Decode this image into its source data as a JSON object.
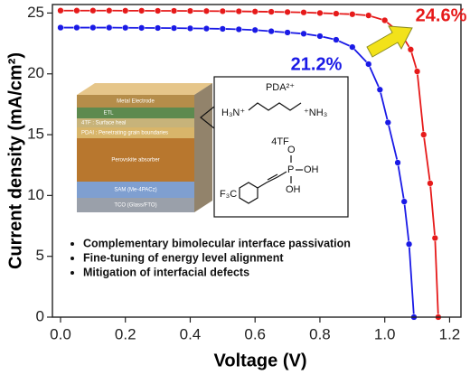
{
  "chart_data": {
    "type": "line",
    "x_label": "Voltage (V)",
    "y_label": "Current density (mA/cm²)",
    "xlim": [
      -0.025,
      1.235
    ],
    "ylim": [
      0,
      25.7
    ],
    "xticks": [
      {
        "value": 0,
        "label": "0.0"
      },
      0.2,
      0.4,
      0.6,
      0.8,
      {
        "value": 1,
        "label": "1.0"
      },
      1.2
    ],
    "yticks": [
      0,
      5,
      10,
      15,
      20,
      25
    ],
    "series": [
      {
        "color": "#1a1ae6",
        "x": [
          0,
          0.05,
          0.1,
          0.15,
          0.2,
          0.25,
          0.3,
          0.35,
          0.4,
          0.45,
          0.5,
          0.55,
          0.6,
          0.65,
          0.7,
          0.75,
          0.8,
          0.85,
          0.9,
          0.95,
          0.985,
          1.01,
          1.04,
          1.06,
          1.075,
          1.09
        ],
        "values": [
          23.8,
          23.8,
          23.8,
          23.8,
          23.79,
          23.78,
          23.77,
          23.76,
          23.74,
          23.72,
          23.7,
          23.66,
          23.6,
          23.5,
          23.4,
          23.3,
          23.1,
          22.8,
          22.2,
          20.8,
          18.7,
          16.0,
          12.7,
          9.5,
          6.0,
          0
        ]
      },
      {
        "color": "#e61a1a",
        "x": [
          0,
          0.05,
          0.1,
          0.15,
          0.2,
          0.25,
          0.3,
          0.35,
          0.4,
          0.45,
          0.5,
          0.55,
          0.6,
          0.65,
          0.7,
          0.75,
          0.8,
          0.85,
          0.9,
          0.95,
          1.0,
          1.05,
          1.08,
          1.1,
          1.12,
          1.14,
          1.155,
          1.165
        ],
        "values": [
          25.2,
          25.2,
          25.2,
          25.2,
          25.19,
          25.19,
          25.18,
          25.18,
          25.17,
          25.16,
          25.15,
          25.14,
          25.12,
          25.1,
          25.08,
          25.05,
          25.0,
          24.95,
          24.9,
          24.8,
          24.4,
          23.3,
          22.0,
          20.2,
          15.0,
          11.0,
          6.5,
          0
        ]
      }
    ],
    "annotations": [
      {
        "text": "21.2%",
        "color": "#1a1ae6"
      },
      {
        "text": "24.6%",
        "color": "#e61a1a"
      }
    ],
    "inset": {
      "layers": [
        "Metal Electrode",
        "ETL",
        "4TF : Surface heal",
        "PDAI : Penetrating grain boundaries",
        "Perovskite absorber",
        "SAM (Me-4PACz)",
        "TCO (Glass/FTO)"
      ],
      "molecules": {
        "pda": "PDA²⁺",
        "pda_left": "H₃N⁺",
        "pda_right": "⁺NH₃",
        "tf": "4TF",
        "cf3": "F₃C",
        "p": "P",
        "o": "O",
        "oh1": "OH",
        "oh2": "OH"
      },
      "bullets": [
        "Complementary bimolecular interface passivation",
        "Fine-tuning of energy level alignment",
        "Mitigation of interfacial defects"
      ]
    }
  }
}
